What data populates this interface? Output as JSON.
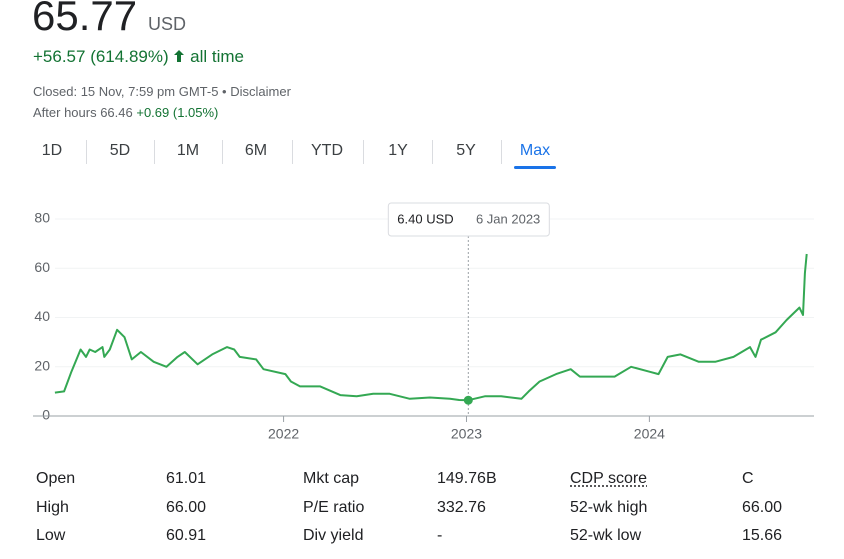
{
  "header": {
    "price": "65.77",
    "currency": "USD",
    "change": "+56.57 (614.89%)",
    "change_period": "all time",
    "closed": "Closed: 15 Nov, 7:59 pm GMT-5 • Disclaimer",
    "after_hours": "After hours 66.46",
    "after_hours_change": "+0.69 (1.05%)"
  },
  "tabs": [
    "1D",
    "5D",
    "1M",
    "6M",
    "YTD",
    "1Y",
    "5Y",
    "Max"
  ],
  "active_tab": 7,
  "chart_data": {
    "type": "line",
    "color": "#34a853",
    "x": [
      2020.75,
      2020.8,
      2020.84,
      2020.89,
      2020.92,
      2020.94,
      2020.97,
      2021.01,
      2021.02,
      2021.05,
      2021.09,
      2021.13,
      2021.17,
      2021.22,
      2021.29,
      2021.36,
      2021.42,
      2021.46,
      2021.53,
      2021.61,
      2021.69,
      2021.73,
      2021.76,
      2021.85,
      2021.89,
      2022.01,
      2022.04,
      2022.09,
      2022.2,
      2022.31,
      2022.4,
      2022.49,
      2022.58,
      2022.69,
      2022.8,
      2022.91,
      2022.96,
      2023.01,
      2023.1,
      2023.19,
      2023.3,
      2023.34,
      2023.4,
      2023.49,
      2023.57,
      2023.62,
      2023.73,
      2023.81,
      2023.9,
      2024.0,
      2024.05,
      2024.1,
      2024.17,
      2024.27,
      2024.36,
      2024.46,
      2024.55,
      2024.58,
      2024.61,
      2024.69,
      2024.75,
      2024.82,
      2024.84,
      2024.85,
      2024.86
    ],
    "values": [
      9.5,
      10,
      18,
      27,
      24,
      27,
      26,
      28,
      24,
      27,
      35,
      32,
      23,
      26,
      22,
      20,
      24,
      26,
      21,
      25,
      28,
      27,
      24,
      23,
      19,
      17,
      14,
      12,
      12,
      8.5,
      8,
      9,
      9,
      7,
      7.5,
      7,
      6.5,
      6.4,
      8,
      8,
      7,
      10,
      14,
      17,
      19,
      16,
      16,
      16,
      20,
      18,
      17,
      24,
      25,
      22,
      22,
      24,
      28,
      24,
      31,
      34,
      39,
      44,
      41,
      58,
      65.77
    ],
    "xlim": [
      2020.63,
      2024.9
    ],
    "xticks": [
      2022,
      2023,
      2024
    ],
    "ylim": [
      0,
      80
    ],
    "yticks": [
      0,
      20,
      40,
      60,
      80
    ],
    "grid": true,
    "tooltip": {
      "x": 2023.01,
      "value": 6.4,
      "label": "6.40 USD",
      "date": "6 Jan 2023"
    }
  },
  "stats": [
    [
      [
        "Open",
        "61.01"
      ],
      [
        "Mkt cap",
        "149.76B"
      ],
      [
        "CDP score",
        "C"
      ]
    ],
    [
      [
        "High",
        "66.00"
      ],
      [
        "P/E ratio",
        "332.76"
      ],
      [
        "52-wk high",
        "66.00"
      ]
    ],
    [
      [
        "Low",
        "60.91"
      ],
      [
        "Div yield",
        "-"
      ],
      [
        "52-wk low",
        "15.66"
      ]
    ]
  ]
}
